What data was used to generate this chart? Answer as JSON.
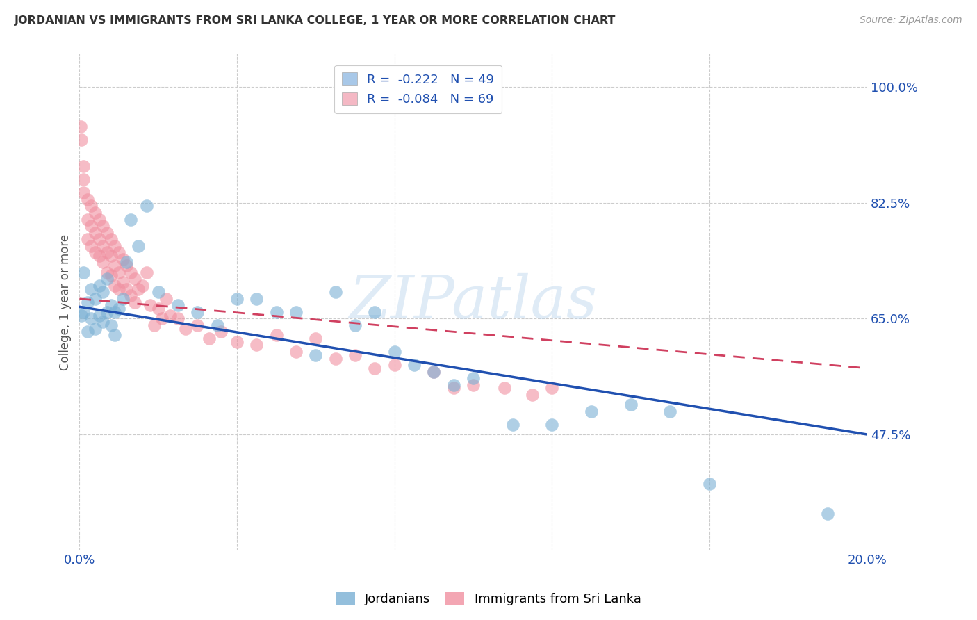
{
  "title": "JORDANIAN VS IMMIGRANTS FROM SRI LANKA COLLEGE, 1 YEAR OR MORE CORRELATION CHART",
  "source": "Source: ZipAtlas.com",
  "ylabel": "College, 1 year or more",
  "xlim": [
    0.0,
    0.2
  ],
  "ylim": [
    0.3,
    1.05
  ],
  "xticks": [
    0.0,
    0.04,
    0.08,
    0.12,
    0.16,
    0.2
  ],
  "xtick_labels": [
    "0.0%",
    "",
    "",
    "",
    "",
    "20.0%"
  ],
  "yticks_right": [
    1.0,
    0.825,
    0.65,
    0.475
  ],
  "ytick_labels_right": [
    "100.0%",
    "82.5%",
    "65.0%",
    "47.5%"
  ],
  "watermark": "ZIPatlas",
  "legend_entries": [
    {
      "label": "R =  -0.222   N = 49",
      "facecolor": "#a8c8e8"
    },
    {
      "label": "R =  -0.084   N = 69",
      "facecolor": "#f4b8c4"
    }
  ],
  "legend_labels_bottom": [
    "Jordanians",
    "Immigrants from Sri Lanka"
  ],
  "jordanians_color": "#7ab0d4",
  "srilanka_color": "#f090a0",
  "jordanians_line_color": "#2050b0",
  "srilanka_line_color": "#d04060",
  "background_color": "#ffffff",
  "grid_color": "#cccccc",
  "jordanians_x": [
    0.0005,
    0.001,
    0.001,
    0.002,
    0.002,
    0.003,
    0.003,
    0.004,
    0.004,
    0.005,
    0.005,
    0.006,
    0.006,
    0.007,
    0.007,
    0.008,
    0.008,
    0.009,
    0.009,
    0.01,
    0.011,
    0.012,
    0.013,
    0.015,
    0.017,
    0.02,
    0.025,
    0.03,
    0.035,
    0.04,
    0.045,
    0.05,
    0.055,
    0.06,
    0.065,
    0.07,
    0.075,
    0.08,
    0.085,
    0.09,
    0.095,
    0.1,
    0.11,
    0.12,
    0.13,
    0.14,
    0.15,
    0.16,
    0.19
  ],
  "jordanians_y": [
    0.655,
    0.72,
    0.66,
    0.675,
    0.63,
    0.695,
    0.65,
    0.68,
    0.635,
    0.7,
    0.655,
    0.69,
    0.645,
    0.71,
    0.66,
    0.67,
    0.64,
    0.66,
    0.625,
    0.665,
    0.68,
    0.735,
    0.8,
    0.76,
    0.82,
    0.69,
    0.67,
    0.66,
    0.64,
    0.68,
    0.68,
    0.66,
    0.66,
    0.595,
    0.69,
    0.64,
    0.66,
    0.6,
    0.58,
    0.57,
    0.55,
    0.56,
    0.49,
    0.49,
    0.51,
    0.52,
    0.51,
    0.4,
    0.355
  ],
  "srilanka_x": [
    0.0003,
    0.0005,
    0.001,
    0.001,
    0.001,
    0.002,
    0.002,
    0.002,
    0.003,
    0.003,
    0.003,
    0.004,
    0.004,
    0.004,
    0.005,
    0.005,
    0.005,
    0.006,
    0.006,
    0.006,
    0.007,
    0.007,
    0.007,
    0.008,
    0.008,
    0.008,
    0.009,
    0.009,
    0.009,
    0.01,
    0.01,
    0.01,
    0.011,
    0.011,
    0.012,
    0.012,
    0.013,
    0.013,
    0.014,
    0.014,
    0.015,
    0.016,
    0.017,
    0.018,
    0.019,
    0.02,
    0.021,
    0.022,
    0.023,
    0.025,
    0.027,
    0.03,
    0.033,
    0.036,
    0.04,
    0.045,
    0.05,
    0.055,
    0.06,
    0.065,
    0.07,
    0.075,
    0.08,
    0.09,
    0.095,
    0.1,
    0.108,
    0.115,
    0.12
  ],
  "srilanka_y": [
    0.94,
    0.92,
    0.88,
    0.86,
    0.84,
    0.83,
    0.8,
    0.77,
    0.82,
    0.79,
    0.76,
    0.81,
    0.78,
    0.75,
    0.8,
    0.77,
    0.745,
    0.79,
    0.76,
    0.735,
    0.78,
    0.75,
    0.72,
    0.77,
    0.745,
    0.715,
    0.76,
    0.73,
    0.7,
    0.75,
    0.72,
    0.695,
    0.74,
    0.705,
    0.73,
    0.695,
    0.72,
    0.685,
    0.71,
    0.675,
    0.695,
    0.7,
    0.72,
    0.67,
    0.64,
    0.665,
    0.65,
    0.68,
    0.655,
    0.65,
    0.635,
    0.64,
    0.62,
    0.63,
    0.615,
    0.61,
    0.625,
    0.6,
    0.62,
    0.59,
    0.595,
    0.575,
    0.58,
    0.57,
    0.545,
    0.55,
    0.545,
    0.535,
    0.545
  ],
  "jline_x0": 0.0,
  "jline_y0": 0.668,
  "jline_x1": 0.2,
  "jline_y1": 0.475,
  "sline_x0": 0.0,
  "sline_y0": 0.68,
  "sline_x1": 0.2,
  "sline_y1": 0.575
}
